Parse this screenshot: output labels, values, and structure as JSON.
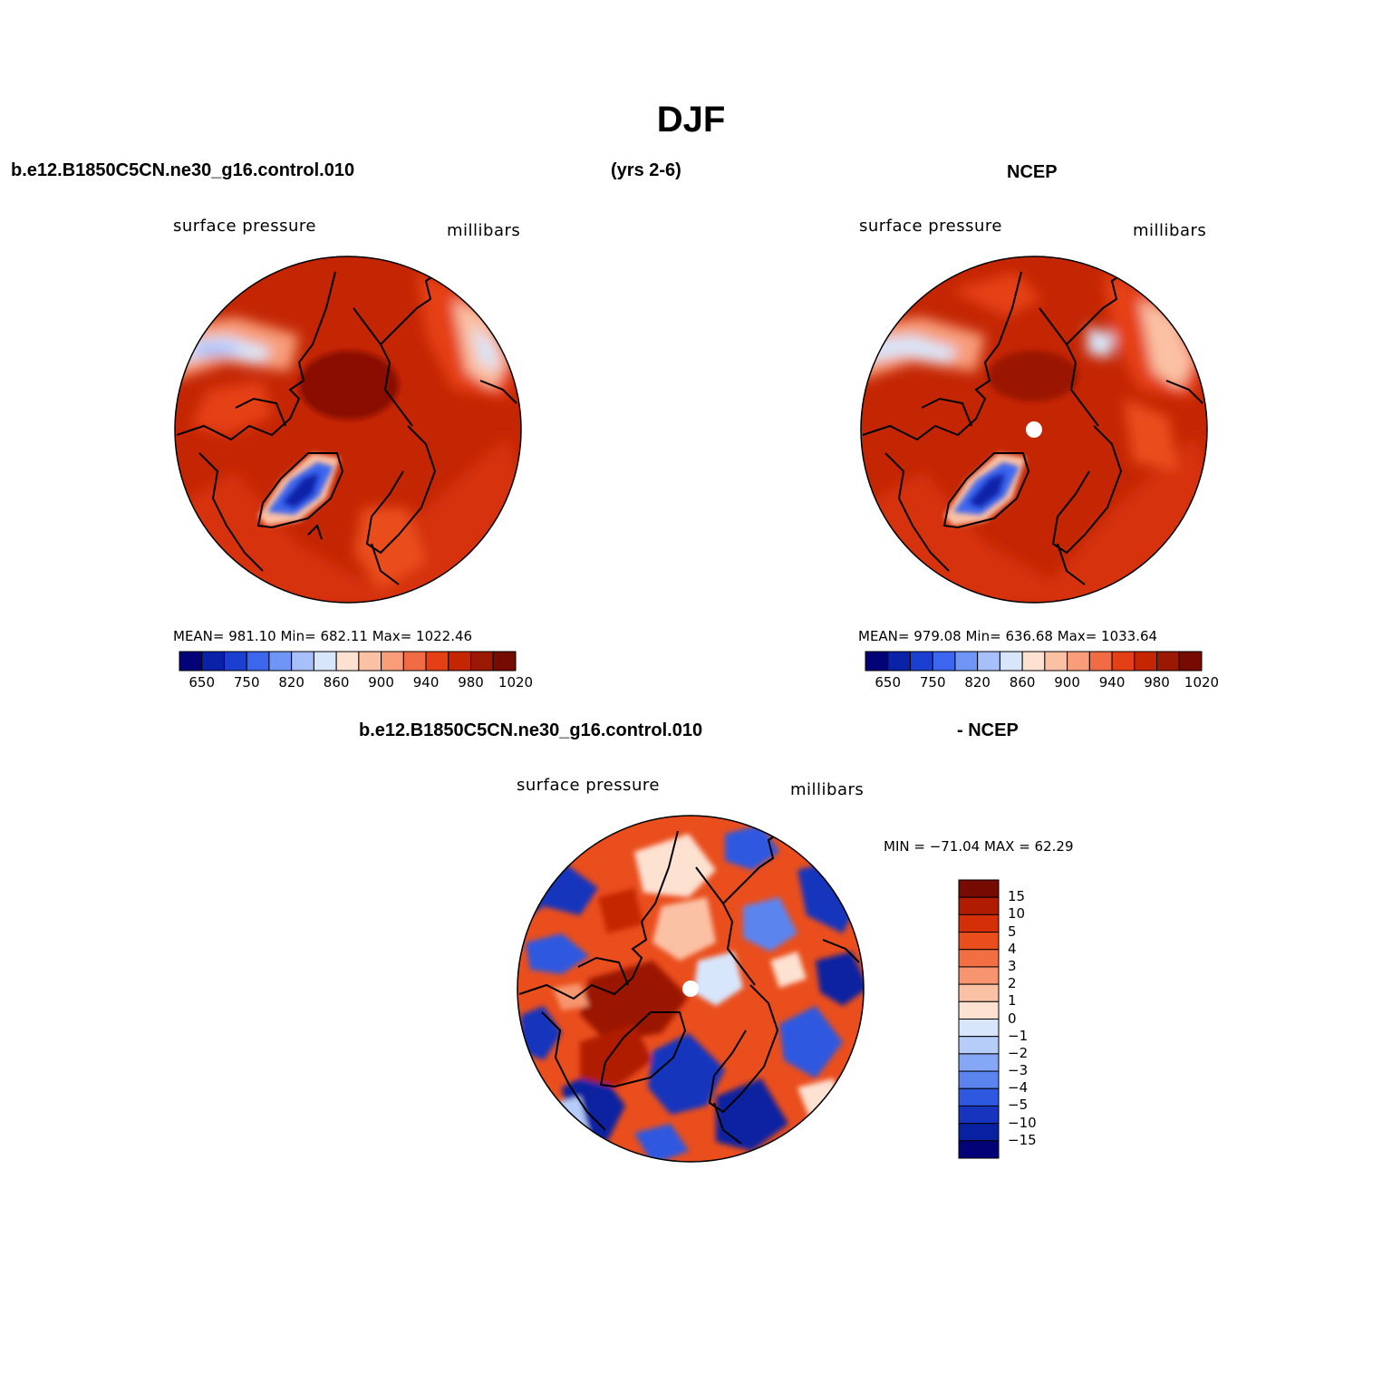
{
  "title": "DJF",
  "top_left_header": "b.e12.B1850C5CN.ne30_g16.control.010",
  "top_center_header": "(yrs 2-6)",
  "top_right_header": "NCEP",
  "bottom_header_left": "b.e12.B1850C5CN.ne30_g16.control.010",
  "bottom_header_right": "- NCEP",
  "panels": {
    "model": {
      "left_label": "surface pressure",
      "right_label": "millibars",
      "stats": "MEAN= 981.10   Min= 682.11   Max= 1022.46"
    },
    "obs": {
      "left_label": "surface pressure",
      "right_label": "millibars",
      "stats": "MEAN= 979.08   Min= 636.68   Max= 1033.64"
    },
    "diff": {
      "left_label": "surface pressure",
      "right_label": "millibars",
      "stats": "MIN = −71.04 MAX =   62.29"
    }
  },
  "colorbar_abs": {
    "colors": [
      "#030276",
      "#0a22a8",
      "#1b3fd1",
      "#3d66ee",
      "#6f95f6",
      "#a7c0fb",
      "#d8e6fb",
      "#fde1d1",
      "#fbc1a4",
      "#f89c79",
      "#f16c45",
      "#e54015",
      "#c42603",
      "#9b1802",
      "#760c01"
    ],
    "tick_labels": [
      "650",
      "750",
      "820",
      "860",
      "900",
      "940",
      "980",
      "1020"
    ]
  },
  "colorbar_diff": {
    "colors": [
      "#760c01",
      "#b01c02",
      "#d52f07",
      "#ea4e1d",
      "#f26f43",
      "#f69570",
      "#fbc1a4",
      "#fde1d1",
      "#d8e6fb",
      "#b6cdfa",
      "#86a7f5",
      "#5b84ee",
      "#2f58e0",
      "#1634bd",
      "#0721a0",
      "#030276"
    ],
    "tick_labels": [
      "15",
      "10",
      "5",
      "4",
      "3",
      "2",
      "1",
      "0",
      "−1",
      "−2",
      "−3",
      "−4",
      "−5",
      "−10",
      "−15"
    ]
  }
}
